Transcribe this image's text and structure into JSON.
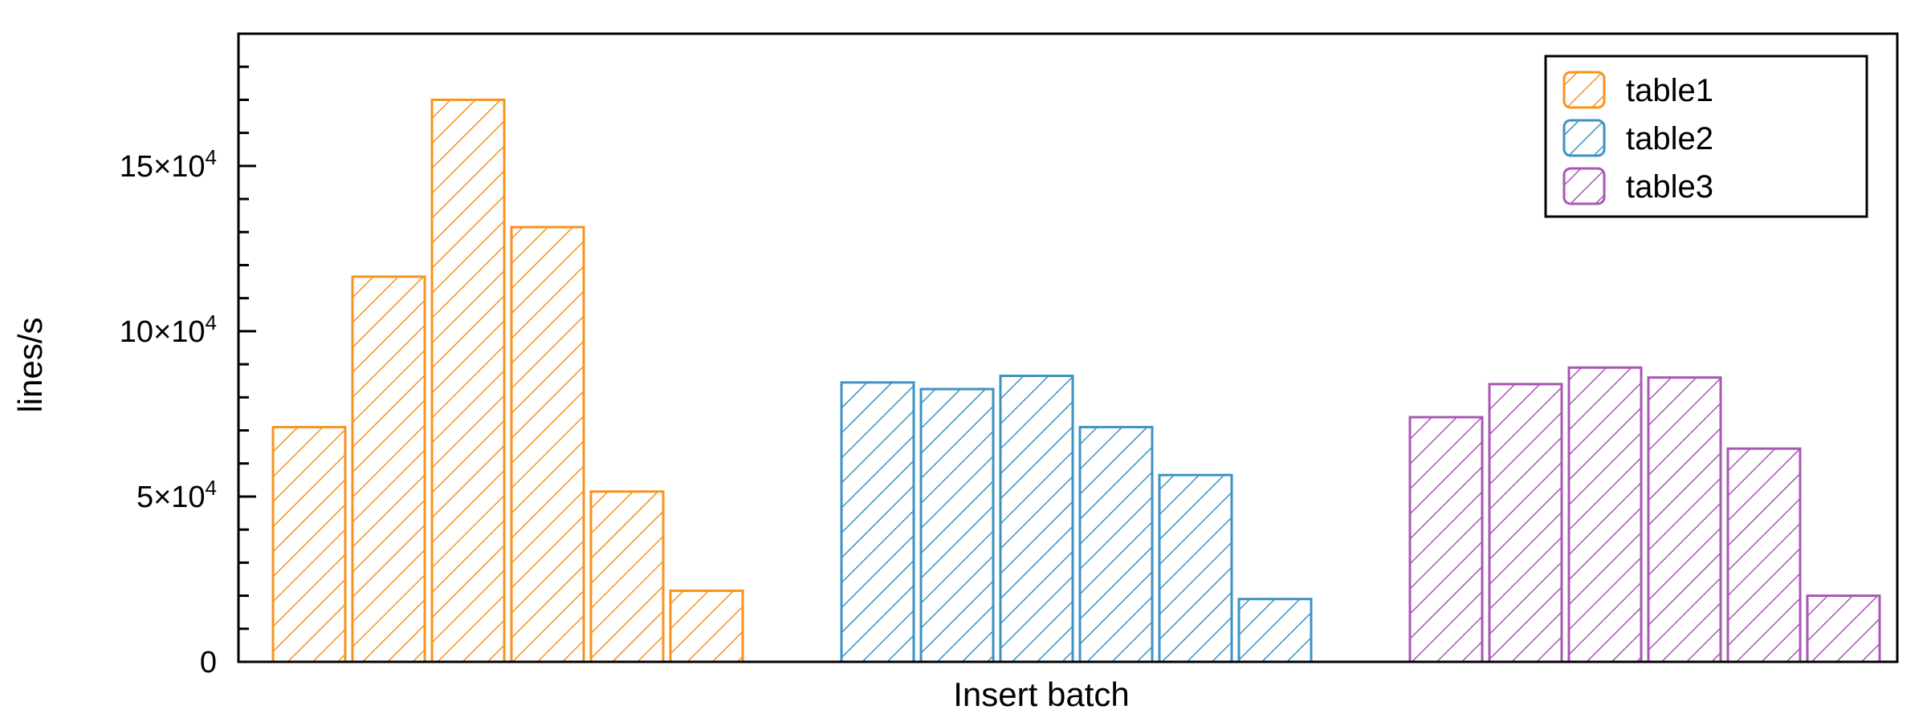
{
  "chart_data": {
    "type": "bar",
    "title": "",
    "xlabel": "Insert batch",
    "ylabel": "lines/s",
    "ylim": [
      0,
      190000
    ],
    "yticks": [
      {
        "value": 0,
        "label": "0",
        "exp": ""
      },
      {
        "value": 50000,
        "label": "5×10",
        "exp": "4"
      },
      {
        "value": 100000,
        "label": "10×10",
        "exp": "4"
      },
      {
        "value": 150000,
        "label": "15×10",
        "exp": "4"
      }
    ],
    "legend_position": "top-right",
    "grid": false,
    "series": [
      {
        "name": "table1",
        "color": "#f7931e",
        "values": [
          71000,
          116500,
          170000,
          131500,
          51500,
          21500
        ]
      },
      {
        "name": "table2",
        "color": "#3d92c4",
        "values": [
          84500,
          82500,
          86500,
          71000,
          56500,
          19000
        ]
      },
      {
        "name": "table3",
        "color": "#a857b4",
        "values": [
          74000,
          84000,
          89000,
          86000,
          64500,
          20000
        ]
      }
    ]
  }
}
